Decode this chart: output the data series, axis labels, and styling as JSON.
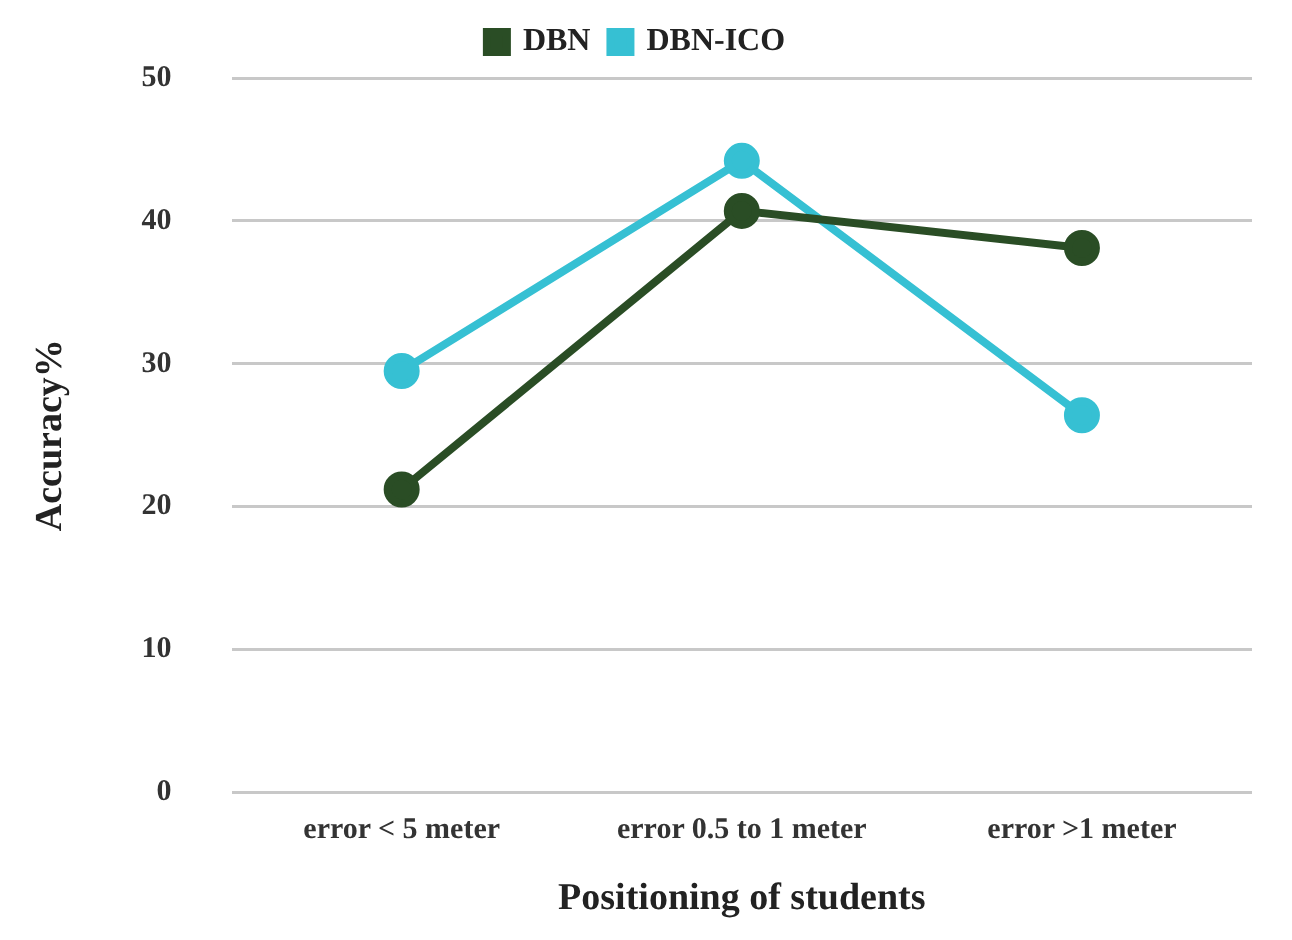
{
  "chart_data": {
    "type": "line",
    "xlabel": "Positioning of students",
    "ylabel": "Accuracy%",
    "categories": [
      "error < 5 meter",
      "error 0.5 to 1 meter",
      "error >1 meter"
    ],
    "series": [
      {
        "name": "DBN",
        "color": "#2a4d25",
        "values": [
          21.2,
          40.7,
          38.1
        ]
      },
      {
        "name": "DBN-ICO",
        "color": "#36c0d3",
        "values": [
          29.5,
          44.2,
          26.4
        ]
      }
    ],
    "ylim": [
      0,
      50
    ],
    "yticks": [
      0,
      10,
      20,
      30,
      40,
      50
    ],
    "grid": "y",
    "legend": "top",
    "marker": "circle",
    "line_style": "solid"
  }
}
